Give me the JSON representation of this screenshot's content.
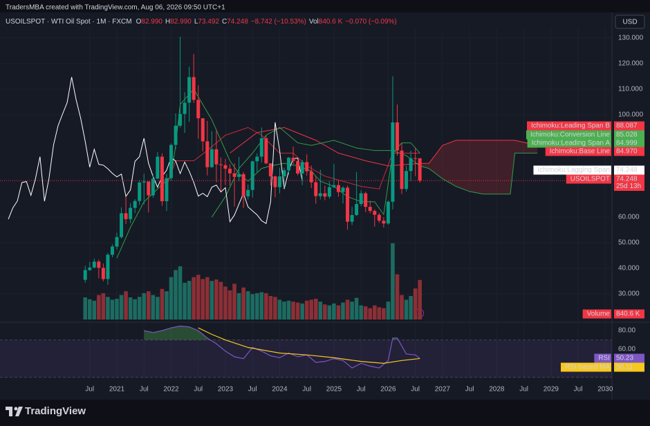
{
  "header": {
    "credit": "TradersMBA created with TradingView.com, Aug 06, 2026 09:50 UTC+1",
    "symbol": "USOILSPOT · WTI Oil Spot · 1M · FXCM",
    "ohlc": [
      {
        "key": "O",
        "text": "82.990"
      },
      {
        "key": "H",
        "text": "82.990"
      },
      {
        "key": "L",
        "text": "73.492"
      },
      {
        "key": "C",
        "text": "74.248"
      }
    ],
    "change": "−8.742 (−10.53%)",
    "vol_key": "Vol",
    "vol_text": "840.6 K",
    "vol_change": "−0.070 (−0.09%)",
    "currency": "USD"
  },
  "chart_data": {
    "type": "candlestick",
    "x": [
      "2020-06",
      "2020-07",
      "2020-08",
      "2020-09",
      "2020-10",
      "2020-11",
      "2020-12",
      "2021-01",
      "2021-02",
      "2021-03",
      "2021-04",
      "2021-05",
      "2021-06",
      "2021-07",
      "2021-08",
      "2021-09",
      "2021-10",
      "2021-11",
      "2021-12",
      "2022-01",
      "2022-02",
      "2022-03",
      "2022-04",
      "2022-05",
      "2022-06",
      "2022-07",
      "2022-08",
      "2022-09",
      "2022-10",
      "2022-11",
      "2022-12",
      "2023-01",
      "2023-02",
      "2023-03",
      "2023-04",
      "2023-05",
      "2023-06",
      "2023-07",
      "2023-08",
      "2023-09",
      "2023-10",
      "2023-11",
      "2023-12",
      "2024-01",
      "2024-02",
      "2024-03",
      "2024-04",
      "2024-05",
      "2024-06",
      "2024-07",
      "2024-08",
      "2024-09",
      "2024-10",
      "2024-11",
      "2024-12",
      "2025-01",
      "2025-02",
      "2025-03",
      "2025-04",
      "2025-05",
      "2025-06",
      "2025-07",
      "2025-08",
      "2025-09",
      "2025-10",
      "2025-11",
      "2025-12",
      "2026-01",
      "2026-02",
      "2026-03",
      "2026-04",
      "2026-05",
      "2026-06",
      "2026-07",
      "2026-08"
    ],
    "open": [
      35.5,
      39.3,
      40.3,
      42.6,
      40.2,
      35.8,
      45.3,
      48.5,
      52.2,
      61.5,
      59.2,
      63.6,
      66.3,
      73.5,
      73.9,
      68.5,
      75,
      83.6,
      66.2,
      75.2,
      88.2,
      95.7,
      100.3,
      104.7,
      114.7,
      105.8,
      98.6,
      89.6,
      79.5,
      86.5,
      80.6,
      80.3,
      78.9,
      77.1,
      75.7,
      76.8,
      68.1,
      70.6,
      81.8,
      83.6,
      90.8,
      81,
      75.9,
      71.7,
      75.9,
      78.3,
      83.2,
      81.9,
      77,
      81.5,
      77.9,
      73.6,
      68.2,
      69.3,
      68,
      71.7,
      72.5,
      69.8,
      71.5,
      58.2,
      60.8,
      65.1,
      69.3,
      64,
      62.4,
      60.9,
      58.6,
      57.5,
      66,
      97,
      86,
      71,
      78,
      83,
      82.99
    ],
    "high": [
      41,
      42.5,
      43.8,
      43.4,
      41.9,
      46,
      49.4,
      53.9,
      63.8,
      67.9,
      65.5,
      67,
      74.5,
      76.9,
      74,
      76.7,
      85.4,
      84.9,
      76.9,
      88.8,
      100.5,
      130.5,
      108.8,
      118.7,
      123.7,
      111.5,
      98.7,
      97.6,
      93.6,
      93.7,
      83.3,
      82.7,
      80.6,
      81,
      83.5,
      77.6,
      72.7,
      82,
      84.9,
      95,
      92,
      81,
      76.2,
      79.3,
      79.3,
      83.5,
      87.6,
      81.9,
      82.4,
      84.5,
      80.2,
      76,
      78.5,
      72.3,
      74,
      80.7,
      74.3,
      72,
      72.3,
      64,
      77.6,
      70.5,
      69.9,
      66.4,
      63,
      61.7,
      60,
      66.5,
      115,
      104,
      89,
      80,
      86,
      87,
      82.99
    ],
    "low": [
      34.4,
      39,
      40,
      36.1,
      34.9,
      33.6,
      44.3,
      47.3,
      51.6,
      57.3,
      57.6,
      61.6,
      64.8,
      65,
      61.8,
      67.6,
      74.9,
      64.4,
      62.4,
      74.3,
      86.5,
      95,
      92.9,
      97.2,
      104.6,
      90.6,
      85.7,
      76.3,
      79.3,
      73.6,
      70.1,
      72.5,
      72.3,
      64.1,
      73.9,
      63.6,
      66.9,
      67.7,
      77.6,
      81.3,
      80.6,
      72.4,
      67.7,
      69.3,
      71.4,
      76.6,
      80.7,
      76.3,
      72.5,
      76.2,
      71.4,
      65.2,
      66.9,
      66.6,
      67.2,
      71.3,
      68,
      65.3,
      55.1,
      56.9,
      60.5,
      64.3,
      61.9,
      61.5,
      56.3,
      57.7,
      55.9,
      57,
      63,
      84,
      69,
      70,
      74,
      76,
      73.492
    ],
    "close": [
      39.3,
      40.3,
      42.6,
      40.2,
      35.8,
      45.3,
      48.5,
      52.2,
      61.5,
      59.2,
      63.6,
      66.3,
      73.5,
      73.9,
      68.5,
      75,
      83.6,
      66.2,
      75.2,
      88.2,
      95.7,
      100.3,
      104.7,
      114.7,
      105.8,
      98.6,
      89.6,
      79.5,
      86.5,
      80.6,
      80.3,
      78.9,
      77.1,
      75.7,
      76.8,
      68.1,
      70.6,
      81.8,
      83.6,
      90.8,
      81,
      75.9,
      71.7,
      75.9,
      78.3,
      83.2,
      81.9,
      77,
      81.5,
      77.9,
      73.6,
      68.2,
      69.3,
      68,
      71.7,
      72.5,
      69.8,
      71.5,
      58.2,
      60.8,
      65.1,
      69.3,
      64,
      62.4,
      60.9,
      58.6,
      57.5,
      66,
      97,
      86,
      71,
      78,
      83,
      82.99,
      74.248
    ],
    "colors": {
      "up": "#089981",
      "down": "#f23645"
    },
    "ylim": [
      20,
      134
    ],
    "yticks": [
      {
        "value": 130,
        "label": "130.000"
      },
      {
        "value": 120,
        "label": "120.000"
      },
      {
        "value": 110,
        "label": "110.000"
      },
      {
        "value": 100,
        "label": "100.000"
      },
      {
        "value": 60,
        "label": "60.000"
      },
      {
        "value": 50,
        "label": "50.000"
      },
      {
        "value": 40,
        "label": "40.000"
      },
      {
        "value": 30,
        "label": "30.000"
      }
    ],
    "xticks": [
      {
        "value": "2020-07",
        "label": "Jul"
      },
      {
        "value": "2021-01",
        "label": "2021"
      },
      {
        "value": "2021-07",
        "label": "Jul"
      },
      {
        "value": "2022-01",
        "label": "2022"
      },
      {
        "value": "2022-07",
        "label": "Jul"
      },
      {
        "value": "2023-01",
        "label": "2023"
      },
      {
        "value": "2023-07",
        "label": "Jul"
      },
      {
        "value": "2024-01",
        "label": "2024"
      },
      {
        "value": "2024-07",
        "label": "Jul"
      },
      {
        "value": "2025-01",
        "label": "2025"
      },
      {
        "value": "2025-07",
        "label": "Jul"
      },
      {
        "value": "2026-01",
        "label": "2026"
      },
      {
        "value": "2026-07",
        "label": "Jul"
      },
      {
        "value": "2027-01",
        "label": "2027"
      },
      {
        "value": "2027-07",
        "label": "Jul"
      },
      {
        "value": "2028-01",
        "label": "2028"
      },
      {
        "value": "2028-07",
        "label": "Jul"
      },
      {
        "value": "2029-01",
        "label": "2029"
      },
      {
        "value": "2029-07",
        "label": "Jul"
      },
      {
        "value": "2030-01",
        "label": "2030"
      }
    ],
    "last_tag": {
      "name": "USOILSPOT",
      "value": 74.248,
      "countdown": "25d 13h"
    },
    "volume": {
      "name": "Volume",
      "ylim": [
        0,
        6200000
      ],
      "up_color": "#1d6b61",
      "down_color": "#8c2f36",
      "values": [
        470000,
        430000,
        400000,
        520000,
        560000,
        480000,
        420000,
        440000,
        520000,
        600000,
        470000,
        430000,
        480000,
        560000,
        600000,
        520000,
        480000,
        650000,
        600000,
        900000,
        1050000,
        1130000,
        780000,
        820000,
        900000,
        950000,
        860000,
        900000,
        820000,
        850000,
        800000,
        700000,
        620000,
        760000,
        560000,
        680000,
        600000,
        540000,
        560000,
        580000,
        560000,
        500000,
        480000,
        420000,
        380000,
        400000,
        380000,
        360000,
        340000,
        400000,
        420000,
        440000,
        380000,
        320000,
        300000,
        340000,
        300000,
        360000,
        420000,
        380000,
        460000,
        300000,
        280000,
        240000,
        300000,
        260000,
        240000,
        380000,
        1620000,
        960000,
        520000,
        420000,
        500000,
        660000,
        840600
      ],
      "tag": {
        "value": 840600,
        "label": "840.6 K"
      }
    },
    "ichimoku": [
      {
        "name": "Ichimoku:Leading Span B",
        "color": "#f23645",
        "tag_color": "#f23645",
        "tag": 88.087,
        "x": [
          "2023-02",
          "2023-08",
          "2024-02",
          "2024-09",
          "2025-02",
          "2025-08",
          "2026-01",
          "2026-08",
          "2026-10",
          "2027-01",
          "2027-04",
          "2027-07",
          "2027-10",
          "2028-01",
          "2028-04",
          "2028-05",
          "2028-10"
        ],
        "values": [
          85,
          93,
          95,
          90,
          85,
          82,
          80,
          81,
          81,
          88,
          90,
          90,
          90,
          90,
          90,
          90,
          88
        ]
      },
      {
        "name": "Ichimoku:Conversion Line",
        "color": "#2e9e4a",
        "tag_color": "#4caf50",
        "tag": 85.028,
        "x": [
          "2021-01",
          "2021-04",
          "2021-07",
          "2021-10",
          "2022-01",
          "2022-02",
          "2022-03",
          "2022-06",
          "2022-08",
          "2022-10",
          "2022-12",
          "2023-02",
          "2023-04",
          "2023-06",
          "2023-09",
          "2023-11",
          "2024-02",
          "2024-05",
          "2024-08",
          "2024-10",
          "2025-01",
          "2025-04",
          "2025-07",
          "2025-10",
          "2025-12",
          "2026-02",
          "2026-04",
          "2026-06",
          "2026-08"
        ],
        "values": [
          44,
          56,
          66,
          71,
          76,
          88,
          104,
          110,
          104,
          98,
          90,
          82,
          77,
          74,
          79,
          80,
          81,
          80,
          78,
          74,
          72,
          68,
          66,
          66,
          61,
          85,
          89,
          89,
          85.028
        ]
      },
      {
        "name": "Ichimoku:Leading Span A",
        "color": "#2e9e4a",
        "tag_color": "#4caf50",
        "tag": 84.999,
        "x": [
          "2022-10",
          "2023-01",
          "2023-04",
          "2023-07",
          "2023-10",
          "2024-01",
          "2024-05",
          "2024-08",
          "2025-01",
          "2025-06",
          "2025-10",
          "2026-02",
          "2026-05",
          "2026-08",
          "2026-10",
          "2027-01",
          "2027-04",
          "2027-07",
          "2027-10",
          "2028-01",
          "2028-04",
          "2028-05",
          "2028-10"
        ],
        "values": [
          60,
          68,
          79,
          85,
          92,
          95,
          89,
          88,
          90,
          87,
          86,
          86,
          84,
          80,
          79,
          75,
          72,
          70,
          69,
          69,
          69,
          85,
          85
        ]
      },
      {
        "name": "Ichimoku:Base Line",
        "color": "#c62b3a",
        "tag_color": "#f23645",
        "tag": {
          "value": 84.97,
          "label": "84.970"
        },
        "x": [
          "2021-12",
          "2022-02",
          "2022-06",
          "2022-09",
          "2023-01",
          "2023-06",
          "2023-09",
          "2024-01",
          "2024-04",
          "2024-07",
          "2024-11",
          "2025-03",
          "2025-07",
          "2025-11",
          "2026-02",
          "2026-08"
        ],
        "values": [
          72,
          82,
          82,
          86,
          92,
          95,
          92,
          85,
          85,
          80,
          76,
          74,
          72,
          71,
          85,
          84.97
        ]
      },
      {
        "name": "Ichimoku:Lagging Span",
        "color": "#ffffff",
        "tag_color": "#ffffff",
        "tag": 74.248,
        "x": [
          "2019-01",
          "2019-02",
          "2019-03",
          "2019-04",
          "2019-05",
          "2019-06",
          "2019-07",
          "2019-08",
          "2019-09",
          "2019-10",
          "2019-11",
          "2019-12",
          "2020-01",
          "2020-02",
          "2020-03",
          "2020-04",
          "2020-05",
          "2020-06",
          "2020-07",
          "2020-08",
          "2020-09",
          "2020-10",
          "2020-11",
          "2020-12",
          "2021-01",
          "2021-02",
          "2021-03",
          "2021-04",
          "2021-05",
          "2021-06",
          "2021-07",
          "2021-08",
          "2021-09",
          "2021-10",
          "2021-11",
          "2021-12",
          "2022-01",
          "2022-02",
          "2022-03",
          "2022-04",
          "2022-05",
          "2022-06",
          "2022-07",
          "2022-08",
          "2022-09",
          "2022-10",
          "2022-11",
          "2022-12",
          "2023-01",
          "2023-02",
          "2023-03",
          "2023-04",
          "2023-05",
          "2023-06",
          "2023-07",
          "2023-08",
          "2023-09",
          "2023-10",
          "2023-11",
          "2023-12",
          "2024-01",
          "2024-02",
          "2024-03",
          "2024-04",
          "2024-05",
          "2024-06"
        ],
        "values": [
          59.2,
          63.6,
          66.3,
          73.5,
          73.9,
          68.5,
          75,
          83.6,
          66.2,
          75.2,
          88.2,
          95.7,
          100.3,
          104.7,
          114.7,
          105.8,
          98.6,
          89.6,
          79.5,
          86.5,
          80.6,
          80.3,
          78.9,
          77.1,
          75.7,
          76.8,
          68.1,
          70.6,
          81.8,
          83.6,
          90.8,
          81,
          75.9,
          71.7,
          75.9,
          78.3,
          83.2,
          81.9,
          77,
          81.5,
          77.9,
          73.6,
          68.2,
          69.3,
          68,
          71.7,
          72.5,
          69.8,
          71.5,
          58.2,
          60.8,
          65.1,
          69.3,
          64,
          62.4,
          60.9,
          58.6,
          57.5,
          66,
          97,
          86,
          71,
          78,
          83,
          82.99,
          74.248
        ]
      }
    ],
    "cloud_color": "rgba(242,54,69,0.18)",
    "rsi": {
      "ylim": [
        30,
        86
      ],
      "yticks": [
        {
          "value": 80,
          "label": "80.00"
        },
        {
          "value": 60,
          "label": "60.00"
        }
      ],
      "band": [
        30,
        70
      ],
      "series": [
        {
          "name": "RSI",
          "color": "#7e57c2",
          "tag": 50.23,
          "x": [
            "2021-07",
            "2021-09",
            "2021-11",
            "2022-01",
            "2022-03",
            "2022-05",
            "2022-07",
            "2022-09",
            "2022-11",
            "2023-01",
            "2023-03",
            "2023-05",
            "2023-07",
            "2023-09",
            "2023-11",
            "2024-01",
            "2024-03",
            "2024-05",
            "2024-07",
            "2024-09",
            "2024-11",
            "2025-01",
            "2025-03",
            "2025-05",
            "2025-07",
            "2025-09",
            "2025-11",
            "2026-01",
            "2026-02",
            "2026-03",
            "2026-05",
            "2026-07",
            "2026-08"
          ],
          "values": [
            80,
            78,
            80,
            83,
            85,
            84,
            80,
            72,
            66,
            58,
            52,
            50,
            62,
            58,
            53,
            51,
            56,
            52,
            54,
            46,
            47,
            50,
            48,
            40,
            45,
            42,
            40,
            48,
            72,
            72,
            55,
            54,
            50.23
          ]
        },
        {
          "name": "RSI-based MA",
          "color": "#f7c81d",
          "tag": 50.11,
          "x": [
            "2022-07",
            "2022-10",
            "2023-01",
            "2023-06",
            "2024-01",
            "2024-07",
            "2025-01",
            "2025-07",
            "2025-12",
            "2026-04",
            "2026-08"
          ],
          "values": [
            83,
            76,
            70,
            62,
            56,
            54,
            51,
            47,
            45,
            48,
            50.11
          ]
        }
      ]
    }
  },
  "footer": {
    "brand": "TradingView"
  }
}
